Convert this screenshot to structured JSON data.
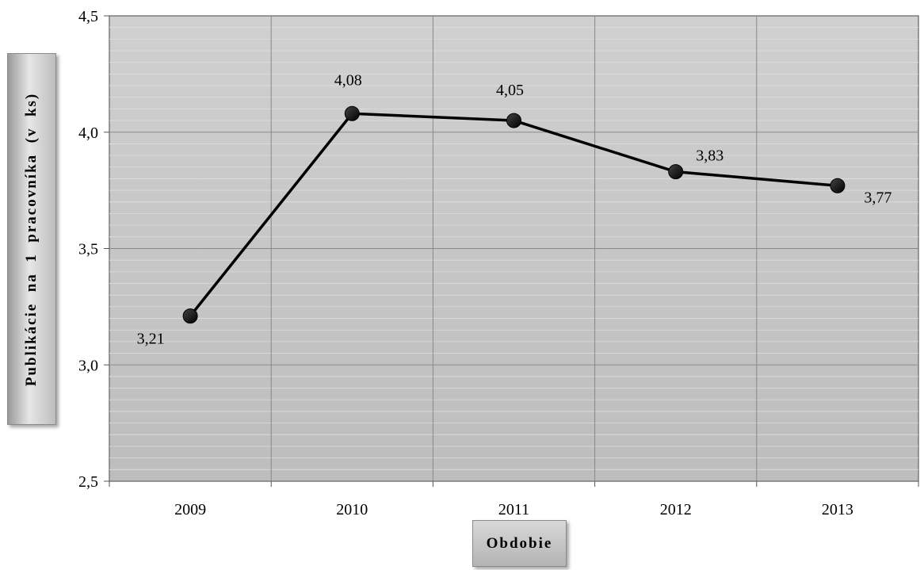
{
  "chart_data": {
    "type": "line",
    "categories": [
      "2009",
      "2010",
      "2011",
      "2012",
      "2013"
    ],
    "series": [
      {
        "values": [
          3.21,
          4.08,
          4.05,
          3.83,
          3.77
        ],
        "labels": [
          "3,21",
          "4,08",
          "4,05",
          "3,83",
          "3,77"
        ]
      }
    ],
    "ylim": [
      2.5,
      4.5
    ],
    "yticks": [
      2.5,
      3.0,
      3.5,
      4.0,
      4.5
    ],
    "ytick_labels": [
      "2,5",
      "3,0",
      "3,5",
      "4,0",
      "4,5"
    ],
    "xlabel": "Obdobie",
    "ylabel": "Publikácie  na  1  pracovníka  (v  ks)",
    "grid": true,
    "legend": "none",
    "colors": {
      "line": "#000000",
      "marker": "#000000",
      "plot_bg": "#c8c8c8",
      "grid": "#888888"
    }
  }
}
